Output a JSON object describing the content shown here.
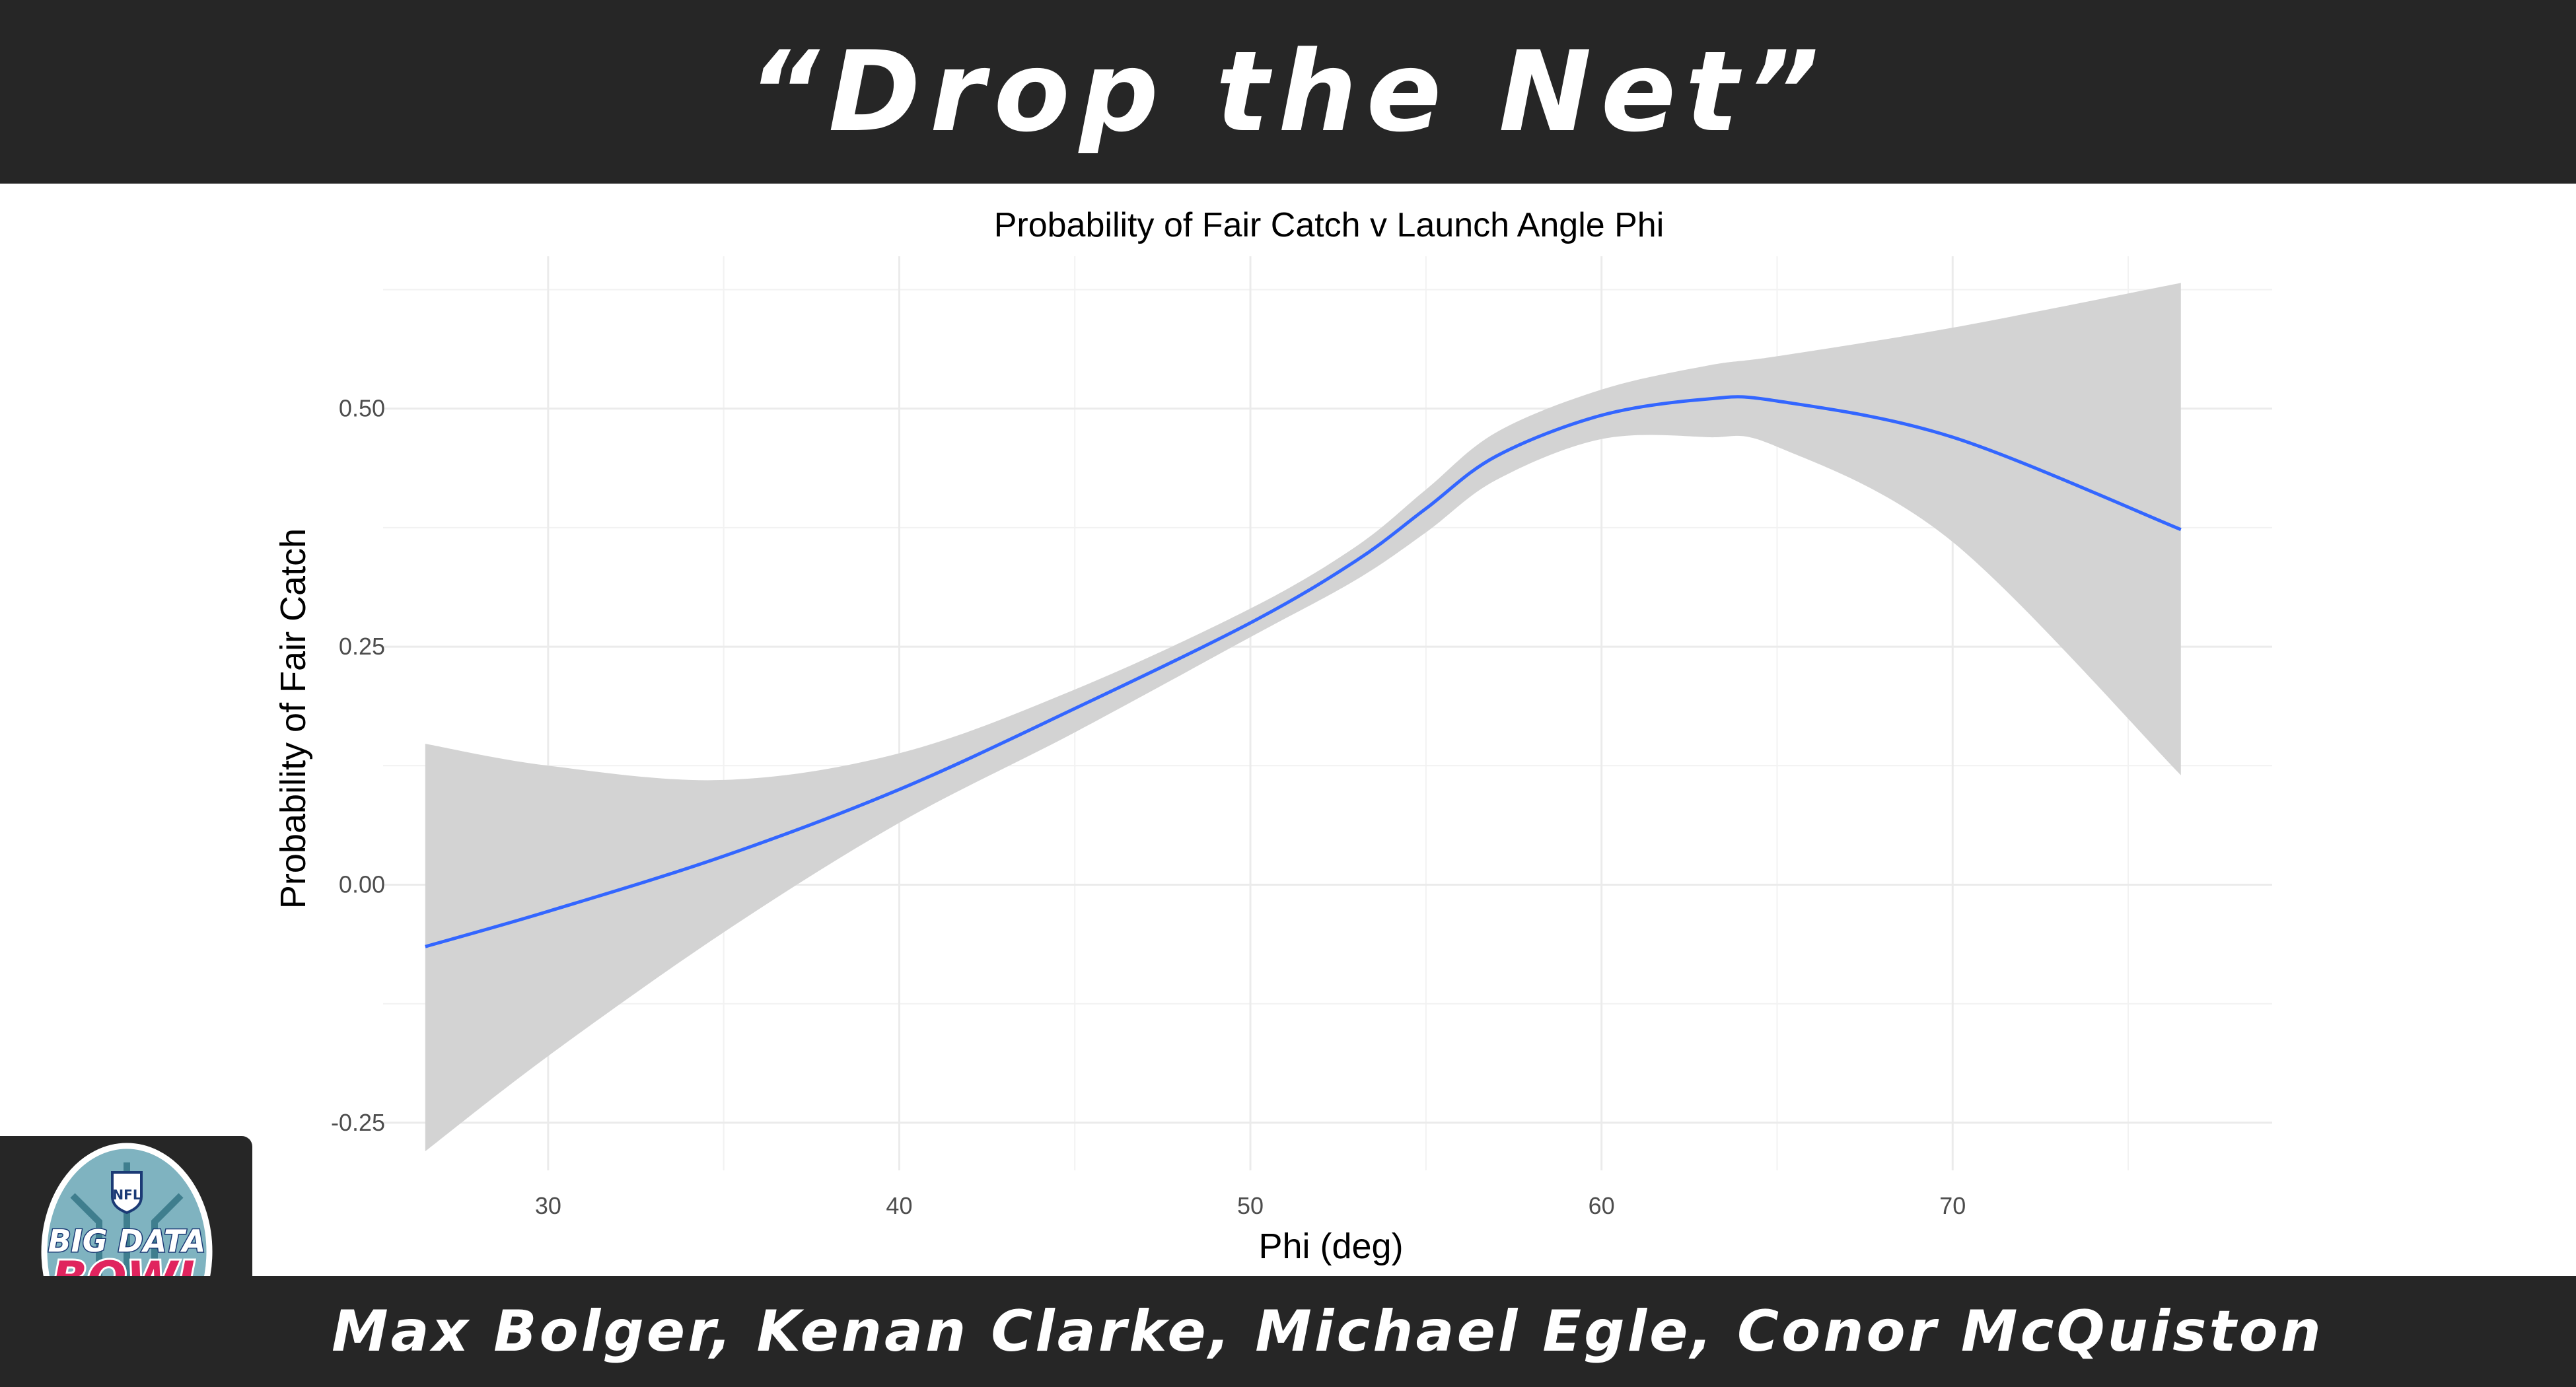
{
  "header": {
    "title": "“Drop the Net”"
  },
  "footer": {
    "authors": "Max Bolger, Kenan Clarke, Michael Egle, Conor McQuiston"
  },
  "logo": {
    "text_line1": "BIG DATA",
    "text_line2": "BOWL",
    "badge": "NFL"
  },
  "colors": {
    "banner": "#262626",
    "line": "#3366FF",
    "band": "#d3d3d3",
    "grid": "#ebebeb",
    "logo_pink": "#e0245e"
  },
  "chart_data": {
    "type": "line",
    "title": "Probability of Fair Catch v Launch Angle Phi",
    "xlabel": "Phi (deg)",
    "ylabel": "Probability of Fair Catch",
    "xlim": [
      25.3,
      79.1
    ],
    "ylim": [
      -0.3,
      0.66
    ],
    "x_ticks": [
      30,
      40,
      50,
      60,
      70
    ],
    "x_tick_labels": [
      "30",
      "40",
      "50",
      "60",
      "70"
    ],
    "y_ticks": [
      -0.25,
      0,
      0.25,
      0.5
    ],
    "y_tick_labels": [
      "-0.25",
      "0.00",
      "0.25",
      "0.50"
    ],
    "grid": true,
    "series": [
      {
        "x": [
          26.5,
          30,
          35,
          40,
          45,
          50,
          53,
          55,
          57,
          60,
          63,
          65,
          70,
          76.5
        ],
        "y": [
          -0.065,
          -0.028,
          0.03,
          0.1,
          0.185,
          0.275,
          0.34,
          0.395,
          0.45,
          0.493,
          0.51,
          0.508,
          0.47,
          0.373
        ],
        "ci_low": [
          -0.28,
          -0.18,
          -0.05,
          0.065,
          0.16,
          0.26,
          0.32,
          0.37,
          0.425,
          0.468,
          0.47,
          0.46,
          0.36,
          0.115
        ],
        "ci_high": [
          0.148,
          0.125,
          0.11,
          0.138,
          0.205,
          0.29,
          0.355,
          0.415,
          0.475,
          0.52,
          0.545,
          0.555,
          0.585,
          0.632
        ]
      }
    ]
  }
}
